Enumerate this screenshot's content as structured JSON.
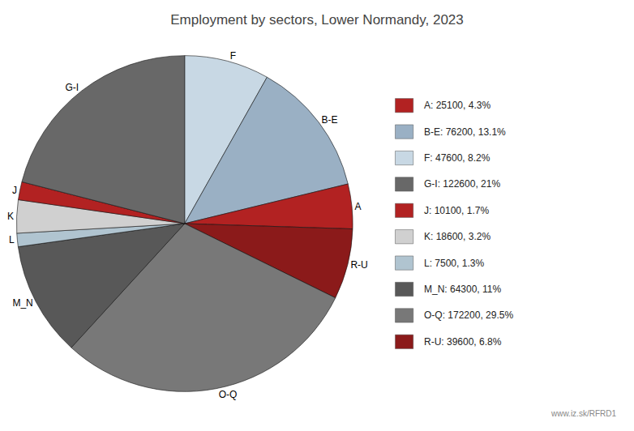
{
  "chart_data": {
    "type": "pie",
    "title": "Employment by sectors, Lower Normandy, 2023",
    "categories": [
      "F",
      "B-E",
      "A",
      "R-U",
      "O-Q",
      "M_N",
      "L",
      "K",
      "J",
      "G-I"
    ],
    "values": [
      47600,
      76200,
      25100,
      39600,
      172200,
      64300,
      7500,
      18600,
      10100,
      122600
    ],
    "colors": [
      "#c8d8e4",
      "#9ab0c4",
      "#b22222",
      "#8b1a1a",
      "#787878",
      "#585858",
      "#b0c4d0",
      "#d0d0d0",
      "#b22222",
      "#686868"
    ],
    "legend": "right",
    "legend_items": [
      {
        "label": "A: 25100, 4.3%",
        "color": "#b22222"
      },
      {
        "label": "B-E: 76200, 13.1%",
        "color": "#9ab0c4"
      },
      {
        "label": "F: 47600, 8.2%",
        "color": "#c8d8e4"
      },
      {
        "label": "G-I: 122600, 21%",
        "color": "#686868"
      },
      {
        "label": "J: 10100, 1.7%",
        "color": "#b22222"
      },
      {
        "label": "K: 18600, 3.2%",
        "color": "#d0d0d0"
      },
      {
        "label": "L: 7500, 1.3%",
        "color": "#b0c4d0"
      },
      {
        "label": "M_N: 64300, 11%",
        "color": "#585858"
      },
      {
        "label": "O-Q: 172200, 29.5%",
        "color": "#787878"
      },
      {
        "label": "R-U: 39600, 6.8%",
        "color": "#8b1a1a"
      }
    ],
    "annotations": [
      "www.iz.sk/RFRD1"
    ]
  }
}
